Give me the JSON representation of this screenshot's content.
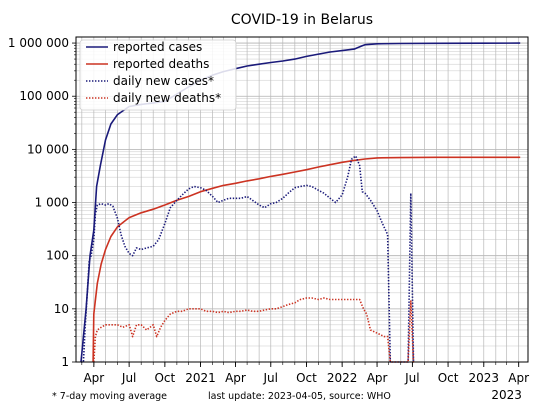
{
  "chart_data": {
    "type": "line",
    "title": "COVID-19 in Belarus",
    "y_scale": "log",
    "ylim": [
      1,
      1300000
    ],
    "xlim": [
      "2020-02-15",
      "2023-04-25"
    ],
    "grid": true,
    "legend_position": "top-left",
    "y_ticks": [
      {
        "value": 1,
        "label": "1"
      },
      {
        "value": 10,
        "label": "10"
      },
      {
        "value": 100,
        "label": "100"
      },
      {
        "value": 1000,
        "label": "1 000"
      },
      {
        "value": 10000,
        "label": "10 000"
      },
      {
        "value": 100000,
        "label": "100 000"
      },
      {
        "value": 1000000,
        "label": "1 000 000"
      }
    ],
    "x_ticks": [
      {
        "date": "2020-04-01",
        "label": "Apr"
      },
      {
        "date": "2020-07-01",
        "label": "Jul"
      },
      {
        "date": "2020-10-01",
        "label": "Oct"
      },
      {
        "date": "2021-01-01",
        "label": "2021"
      },
      {
        "date": "2021-04-01",
        "label": "Apr"
      },
      {
        "date": "2021-07-01",
        "label": "Jul"
      },
      {
        "date": "2021-10-01",
        "label": "Oct"
      },
      {
        "date": "2022-01-01",
        "label": "2022"
      },
      {
        "date": "2022-04-01",
        "label": "Apr"
      },
      {
        "date": "2022-07-01",
        "label": "Jul"
      },
      {
        "date": "2022-10-01",
        "label": "Oct"
      },
      {
        "date": "2023-01-01",
        "label": "2023"
      },
      {
        "date": "2023-04-01",
        "label": "Apr"
      }
    ],
    "x_year_label": "2023",
    "series": [
      {
        "name": "reported cases",
        "color": "#1a1a7a",
        "style": "solid",
        "points": [
          [
            "2020-02-28",
            1
          ],
          [
            "2020-03-12",
            10
          ],
          [
            "2020-03-22",
            100
          ],
          [
            "2020-04-01",
            300
          ],
          [
            "2020-04-08",
            2000
          ],
          [
            "2020-04-18",
            5000
          ],
          [
            "2020-05-01",
            15000
          ],
          [
            "2020-05-15",
            30000
          ],
          [
            "2020-06-01",
            45000
          ],
          [
            "2020-07-01",
            64000
          ],
          [
            "2020-08-01",
            70000
          ],
          [
            "2020-09-01",
            75000
          ],
          [
            "2020-10-01",
            80000
          ],
          [
            "2020-11-01",
            110000
          ],
          [
            "2020-12-01",
            150000
          ],
          [
            "2021-01-01",
            200000
          ],
          [
            "2021-02-01",
            250000
          ],
          [
            "2021-03-01",
            290000
          ],
          [
            "2021-04-01",
            330000
          ],
          [
            "2021-05-01",
            370000
          ],
          [
            "2021-06-01",
            400000
          ],
          [
            "2021-07-01",
            430000
          ],
          [
            "2021-08-01",
            460000
          ],
          [
            "2021-09-01",
            500000
          ],
          [
            "2021-10-01",
            560000
          ],
          [
            "2021-11-01",
            620000
          ],
          [
            "2021-12-01",
            680000
          ],
          [
            "2022-01-01",
            720000
          ],
          [
            "2022-02-01",
            770000
          ],
          [
            "2022-02-20",
            880000
          ],
          [
            "2022-03-01",
            930000
          ],
          [
            "2022-04-01",
            970000
          ],
          [
            "2022-06-01",
            980000
          ],
          [
            "2022-09-01",
            990000
          ],
          [
            "2023-01-01",
            995000
          ],
          [
            "2023-04-05",
            998000
          ]
        ]
      },
      {
        "name": "reported deaths",
        "color": "#cc3322",
        "style": "solid",
        "points": [
          [
            "2020-03-30",
            1
          ],
          [
            "2020-04-01",
            8
          ],
          [
            "2020-04-10",
            30
          ],
          [
            "2020-04-20",
            70
          ],
          [
            "2020-05-01",
            130
          ],
          [
            "2020-05-15",
            230
          ],
          [
            "2020-06-01",
            350
          ],
          [
            "2020-07-01",
            520
          ],
          [
            "2020-08-01",
            640
          ],
          [
            "2020-09-01",
            750
          ],
          [
            "2020-10-01",
            900
          ],
          [
            "2020-11-01",
            1100
          ],
          [
            "2020-12-01",
            1300
          ],
          [
            "2021-01-01",
            1600
          ],
          [
            "2021-02-01",
            1850
          ],
          [
            "2021-03-01",
            2100
          ],
          [
            "2021-04-01",
            2300
          ],
          [
            "2021-05-01",
            2550
          ],
          [
            "2021-06-01",
            2800
          ],
          [
            "2021-07-01",
            3100
          ],
          [
            "2021-08-01",
            3400
          ],
          [
            "2021-09-01",
            3750
          ],
          [
            "2021-10-01",
            4150
          ],
          [
            "2021-11-01",
            4650
          ],
          [
            "2021-12-01",
            5150
          ],
          [
            "2022-01-01",
            5700
          ],
          [
            "2022-02-01",
            6200
          ],
          [
            "2022-03-01",
            6600
          ],
          [
            "2022-04-01",
            6900
          ],
          [
            "2022-06-01",
            7000
          ],
          [
            "2022-09-01",
            7100
          ],
          [
            "2023-04-05",
            7100
          ]
        ]
      },
      {
        "name": "daily new cases*",
        "color": "#1a1a7a",
        "style": "dotted",
        "points": [
          [
            "2020-02-28",
            1
          ],
          [
            "2020-03-05",
            1
          ],
          [
            "2020-03-10",
            5
          ],
          [
            "2020-03-15",
            20
          ],
          [
            "2020-03-20",
            80
          ],
          [
            "2020-03-25",
            100
          ],
          [
            "2020-04-01",
            200
          ],
          [
            "2020-04-05",
            600
          ],
          [
            "2020-04-10",
            900
          ],
          [
            "2020-04-20",
            950
          ],
          [
            "2020-05-01",
            900
          ],
          [
            "2020-05-10",
            950
          ],
          [
            "2020-05-20",
            850
          ],
          [
            "2020-06-01",
            500
          ],
          [
            "2020-06-10",
            250
          ],
          [
            "2020-06-20",
            150
          ],
          [
            "2020-07-01",
            110
          ],
          [
            "2020-07-10",
            100
          ],
          [
            "2020-07-20",
            140
          ],
          [
            "2020-08-01",
            130
          ],
          [
            "2020-08-15",
            140
          ],
          [
            "2020-09-01",
            150
          ],
          [
            "2020-09-15",
            200
          ],
          [
            "2020-10-01",
            400
          ],
          [
            "2020-10-15",
            800
          ],
          [
            "2020-11-01",
            1100
          ],
          [
            "2020-11-15",
            1400
          ],
          [
            "2020-12-01",
            1800
          ],
          [
            "2020-12-15",
            2000
          ],
          [
            "2021-01-01",
            1900
          ],
          [
            "2021-01-15",
            1700
          ],
          [
            "2021-02-01",
            1300
          ],
          [
            "2021-02-15",
            1000
          ],
          [
            "2021-03-01",
            1100
          ],
          [
            "2021-03-15",
            1200
          ],
          [
            "2021-04-01",
            1200
          ],
          [
            "2021-04-15",
            1200
          ],
          [
            "2021-05-01",
            1300
          ],
          [
            "2021-05-15",
            1100
          ],
          [
            "2021-06-01",
            900
          ],
          [
            "2021-06-15",
            800
          ],
          [
            "2021-07-01",
            950
          ],
          [
            "2021-07-15",
            1000
          ],
          [
            "2021-08-01",
            1200
          ],
          [
            "2021-08-15",
            1500
          ],
          [
            "2021-09-01",
            1900
          ],
          [
            "2021-09-15",
            2000
          ],
          [
            "2021-10-01",
            2100
          ],
          [
            "2021-10-15",
            2000
          ],
          [
            "2021-11-01",
            1700
          ],
          [
            "2021-11-15",
            1500
          ],
          [
            "2021-12-01",
            1200
          ],
          [
            "2021-12-15",
            1000
          ],
          [
            "2022-01-01",
            1400
          ],
          [
            "2022-01-15",
            3000
          ],
          [
            "2022-01-25",
            6500
          ],
          [
            "2022-02-05",
            7500
          ],
          [
            "2022-02-15",
            5000
          ],
          [
            "2022-02-22",
            1600
          ],
          [
            "2022-03-01",
            1500
          ],
          [
            "2022-03-15",
            1100
          ],
          [
            "2022-04-01",
            700
          ],
          [
            "2022-04-15",
            400
          ],
          [
            "2022-04-28",
            250
          ],
          [
            "2022-05-05",
            1
          ],
          [
            "2022-06-20",
            1
          ],
          [
            "2022-06-27",
            1500
          ],
          [
            "2022-07-04",
            1
          ],
          [
            "2022-07-05",
            1
          ]
        ]
      },
      {
        "name": "daily new deaths*",
        "color": "#cc3322",
        "style": "dotted",
        "points": [
          [
            "2020-04-01",
            1
          ],
          [
            "2020-04-05",
            3
          ],
          [
            "2020-04-10",
            4
          ],
          [
            "2020-04-20",
            4.5
          ],
          [
            "2020-05-01",
            5
          ],
          [
            "2020-05-15",
            5
          ],
          [
            "2020-06-01",
            5
          ],
          [
            "2020-06-15",
            4.5
          ],
          [
            "2020-07-01",
            5
          ],
          [
            "2020-07-10",
            3
          ],
          [
            "2020-07-20",
            5
          ],
          [
            "2020-08-01",
            5
          ],
          [
            "2020-08-15",
            4
          ],
          [
            "2020-09-01",
            5
          ],
          [
            "2020-09-10",
            3
          ],
          [
            "2020-09-20",
            4.5
          ],
          [
            "2020-10-01",
            6
          ],
          [
            "2020-10-15",
            8
          ],
          [
            "2020-11-01",
            9
          ],
          [
            "2020-11-15",
            9
          ],
          [
            "2020-12-01",
            10
          ],
          [
            "2020-12-15",
            10
          ],
          [
            "2021-01-01",
            10
          ],
          [
            "2021-01-15",
            9
          ],
          [
            "2021-02-01",
            9
          ],
          [
            "2021-02-15",
            8.5
          ],
          [
            "2021-03-01",
            9
          ],
          [
            "2021-03-15",
            8.5
          ],
          [
            "2021-04-01",
            9
          ],
          [
            "2021-04-15",
            9
          ],
          [
            "2021-05-01",
            9.5
          ],
          [
            "2021-05-15",
            9
          ],
          [
            "2021-06-01",
            9
          ],
          [
            "2021-06-15",
            9.5
          ],
          [
            "2021-07-01",
            10
          ],
          [
            "2021-07-15",
            10
          ],
          [
            "2021-08-01",
            11
          ],
          [
            "2021-08-15",
            12
          ],
          [
            "2021-09-01",
            13
          ],
          [
            "2021-09-15",
            15
          ],
          [
            "2021-10-01",
            16
          ],
          [
            "2021-10-15",
            16
          ],
          [
            "2021-11-01",
            15
          ],
          [
            "2021-11-15",
            16
          ],
          [
            "2021-12-01",
            15
          ],
          [
            "2021-12-15",
            15
          ],
          [
            "2022-01-01",
            15
          ],
          [
            "2022-01-15",
            15
          ],
          [
            "2022-02-01",
            15
          ],
          [
            "2022-02-15",
            15
          ],
          [
            "2022-02-25",
            10
          ],
          [
            "2022-03-05",
            8
          ],
          [
            "2022-03-15",
            4
          ],
          [
            "2022-04-01",
            3.5
          ],
          [
            "2022-04-20",
            3
          ],
          [
            "2022-04-28",
            3
          ],
          [
            "2022-05-05",
            1
          ],
          [
            "2022-06-20",
            1
          ],
          [
            "2022-06-27",
            14
          ],
          [
            "2022-07-04",
            1
          ],
          [
            "2022-07-05",
            1
          ]
        ]
      }
    ]
  },
  "footnotes": {
    "left": "* 7-day moving average",
    "right": "last update: 2023-04-05, source: WHO"
  }
}
